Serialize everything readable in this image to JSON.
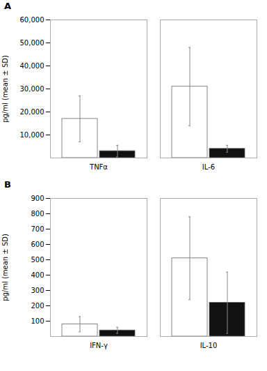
{
  "chart_data": [
    {
      "type": "bar",
      "title": "A",
      "categories": [
        "TNFα",
        "IL-6"
      ],
      "series": [
        {
          "color": "#ffffff",
          "values": [
            17000,
            31000
          ],
          "errors": [
            10000,
            17000
          ]
        },
        {
          "color": "#111111",
          "values": [
            3000,
            4000
          ],
          "errors": [
            2500,
            1500
          ]
        }
      ],
      "ylabel": "pg/ml (mean ± SD)",
      "ylim": [
        0,
        60000
      ],
      "yticks": [
        {
          "value": 10000,
          "label": "10,000"
        },
        {
          "value": 20000,
          "label": "20,000"
        },
        {
          "value": 30000,
          "label": "30,000"
        },
        {
          "value": 40000,
          "label": "40,000"
        },
        {
          "value": 50000,
          "label": "50,000"
        },
        {
          "value": 60000,
          "label": "60,000"
        }
      ],
      "grid": false
    },
    {
      "type": "bar",
      "title": "B",
      "categories": [
        "IFN-γ",
        "IL-10"
      ],
      "series": [
        {
          "color": "#ffffff",
          "values": [
            80,
            510
          ],
          "errors": [
            50,
            270
          ]
        },
        {
          "color": "#111111",
          "values": [
            40,
            220
          ],
          "errors": [
            20,
            200
          ]
        }
      ],
      "ylabel": "pg/ml (mean ± SD)",
      "ylim": [
        0,
        900
      ],
      "yticks": [
        100,
        200,
        300,
        400,
        500,
        600,
        700,
        800,
        900
      ],
      "grid": false
    }
  ]
}
